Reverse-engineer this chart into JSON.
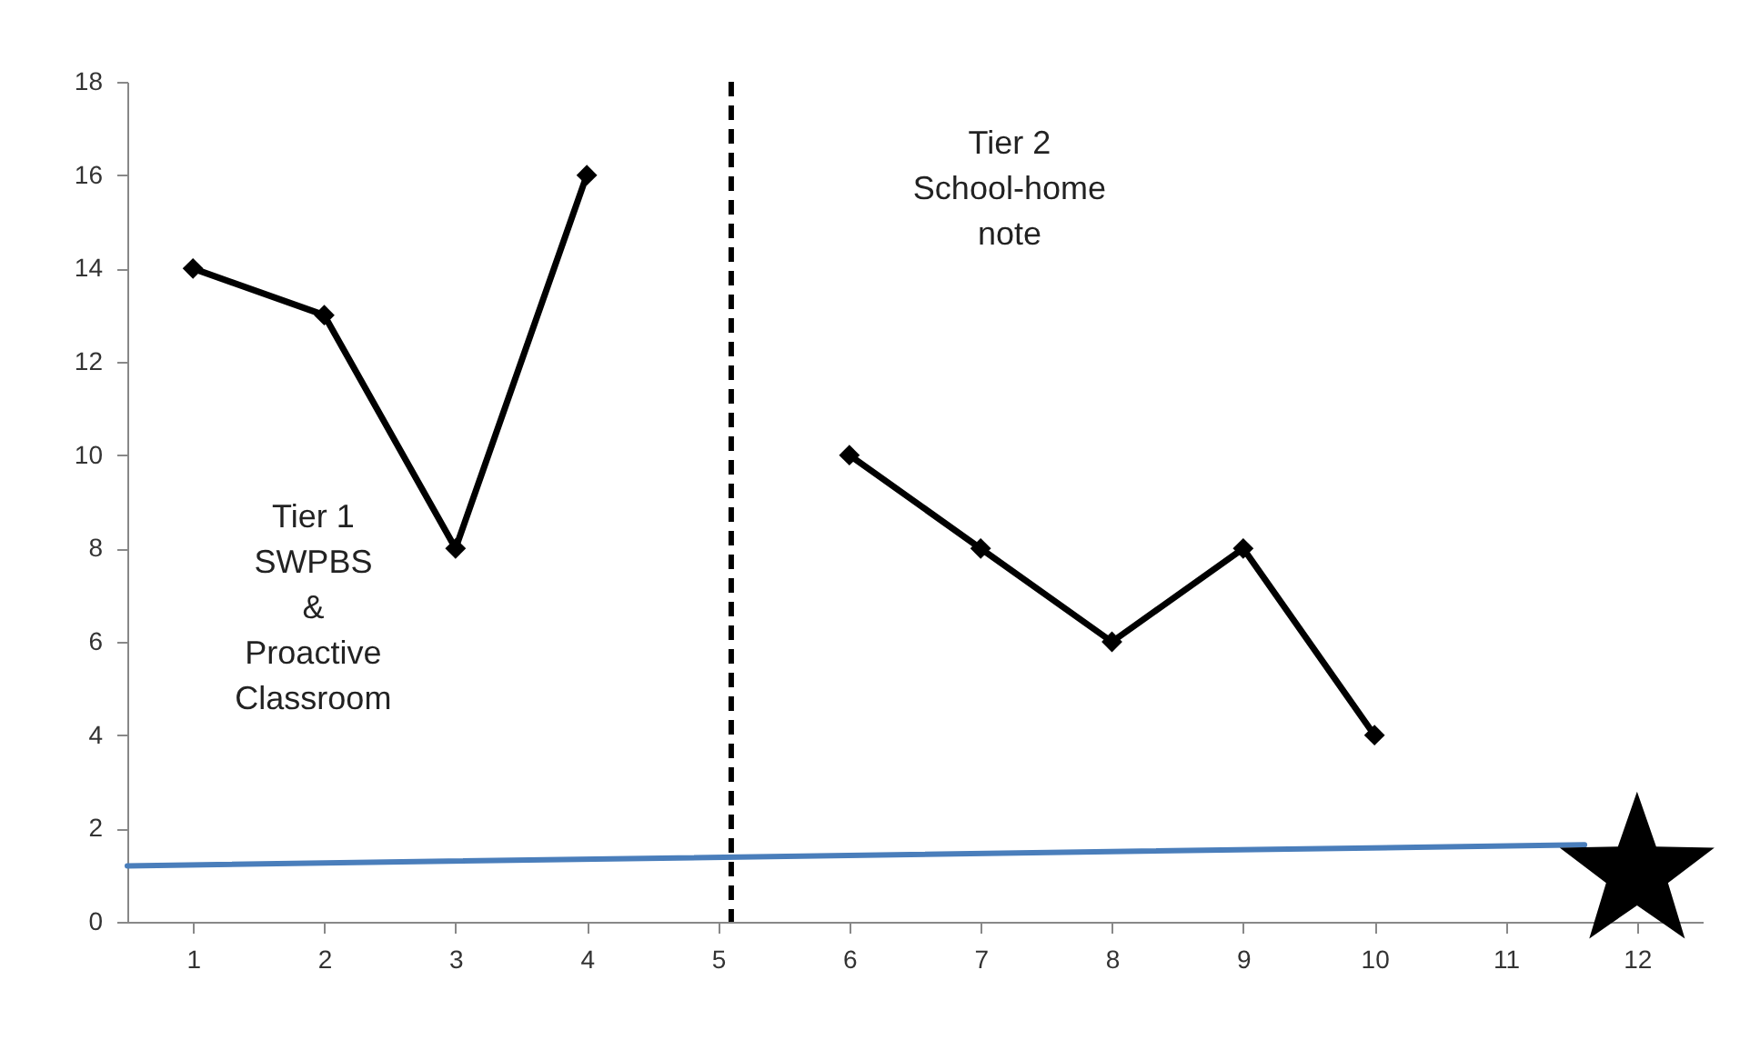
{
  "chart_data": {
    "type": "line",
    "xlim": [
      0.5,
      12.5
    ],
    "xticks": [
      1,
      2,
      3,
      4,
      5,
      6,
      7,
      8,
      9,
      10,
      11,
      12
    ],
    "ylim": [
      0,
      18
    ],
    "yticks": [
      0,
      2,
      4,
      6,
      8,
      10,
      12,
      14,
      16,
      18
    ],
    "grid": false,
    "marker": "diamond",
    "series": [
      {
        "color": "#000000",
        "x": [
          1,
          2,
          3,
          4,
          5,
          6,
          7,
          8,
          9,
          10
        ],
        "values": [
          14,
          13,
          8,
          16,
          null,
          10,
          8,
          6,
          8,
          4
        ]
      },
      {
        "color": "#4a7ebb",
        "marker": "none",
        "x": [
          0.5,
          11.6
        ],
        "values": [
          1.2,
          1.65
        ]
      },
      {
        "type": "scatter",
        "color": "#000000",
        "marker": "star",
        "x": [
          12
        ],
        "values": [
          1.05
        ]
      }
    ],
    "ref_lines": [
      {
        "axis": "x",
        "value": 5.1,
        "color": "#000000",
        "line_style": "dashed"
      }
    ],
    "annotations": [
      "Tier 1\nSWPBS\n&\nProactive\nClassroom",
      "Tier 2\nSchool-home\nnote"
    ]
  }
}
